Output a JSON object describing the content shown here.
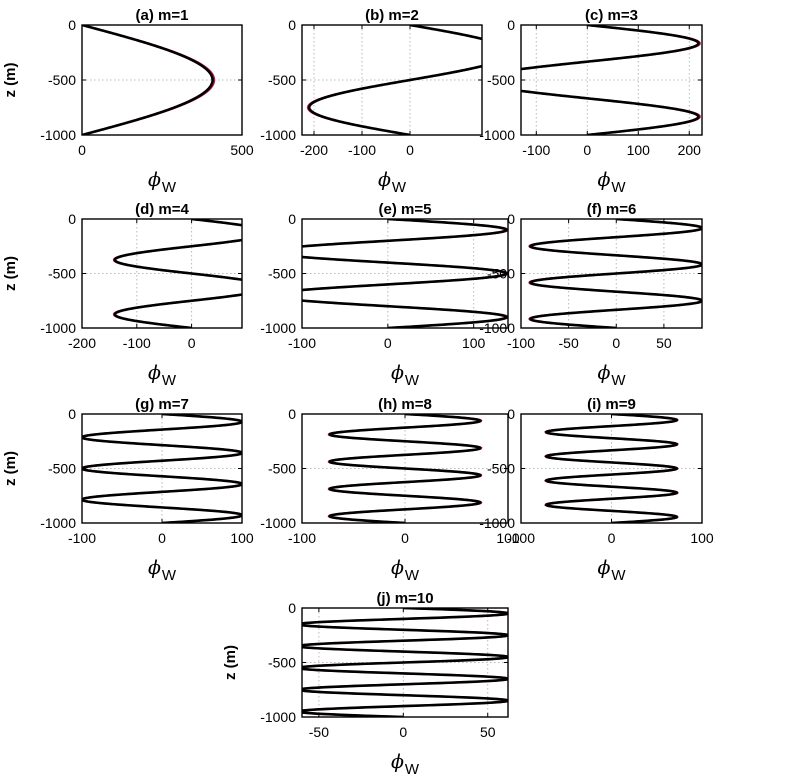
{
  "chart_data": [
    {
      "type": "line",
      "title": "(a) m=1",
      "xlabel": "ϕ",
      "xlabel_sub": "W",
      "ylabel": "z (m)",
      "xlim": [
        0,
        500
      ],
      "ylim": [
        -1000,
        0
      ],
      "xticks": [
        0,
        500
      ],
      "yticks": [
        0,
        -500,
        -1000
      ],
      "mode": 1,
      "amplitude": 408,
      "depth_range": [
        0,
        -1000
      ],
      "grid": true,
      "series": [
        {
          "color": "#000000"
        },
        {
          "color": "#c0185a"
        }
      ]
    },
    {
      "type": "line",
      "title": "(b) m=2",
      "xlabel": "ϕ",
      "xlabel_sub": "W",
      "ylabel": "",
      "xlim": [
        -225,
        150
      ],
      "ylim": [
        -1000,
        0
      ],
      "xticks": [
        -200,
        -100,
        0
      ],
      "yticks": [
        0,
        -500,
        -1000
      ],
      "mode": 2,
      "amplitude": 210,
      "depth_range": [
        0,
        -1000
      ],
      "grid": true,
      "series": [
        {
          "color": "#000000"
        },
        {
          "color": "#c0185a"
        }
      ]
    },
    {
      "type": "line",
      "title": "(c) m=3",
      "xlabel": "ϕ",
      "xlabel_sub": "W",
      "ylabel": "",
      "xlim": [
        -130,
        225
      ],
      "ylim": [
        -1000,
        0
      ],
      "xticks": [
        -100,
        0,
        100,
        200
      ],
      "yticks": [
        0,
        -500,
        -1000
      ],
      "mode": 3,
      "amplitude": 218,
      "depth_range": [
        0,
        -1000
      ],
      "grid": true,
      "series": [
        {
          "color": "#000000"
        },
        {
          "color": "#c0185a"
        }
      ]
    },
    {
      "type": "line",
      "title": "(d) m=4",
      "xlabel": "ϕ",
      "xlabel_sub": "W",
      "ylabel": "z (m)",
      "xlim": [
        -200,
        92
      ],
      "ylim": [
        -1000,
        0
      ],
      "xticks": [
        -200,
        -100,
        0
      ],
      "yticks": [
        0,
        -500,
        -1000
      ],
      "mode": 4,
      "amplitude": 140,
      "depth_range": [
        0,
        -1000
      ],
      "grid": true,
      "series": [
        {
          "color": "#000000"
        },
        {
          "color": "#c0185a"
        }
      ]
    },
    {
      "type": "line",
      "title": "(e) m=5",
      "xlabel": "ϕ",
      "xlabel_sub": "W",
      "ylabel": "",
      "xlim": [
        -100,
        140
      ],
      "ylim": [
        -1000,
        0
      ],
      "xticks": [
        -100,
        0,
        100
      ],
      "yticks": [
        0,
        -500,
        -1000
      ],
      "mode": 5,
      "amplitude": 138,
      "depth_range": [
        0,
        -1000
      ],
      "grid": true,
      "series": [
        {
          "color": "#000000"
        },
        {
          "color": "#c0185a"
        }
      ]
    },
    {
      "type": "line",
      "title": "(f) m=6",
      "xlabel": "ϕ",
      "xlabel_sub": "W",
      "ylabel": "",
      "xlim": [
        -100,
        90
      ],
      "ylim": [
        -1000,
        0
      ],
      "xticks": [
        -100,
        -50,
        0,
        50
      ],
      "yticks": [
        0,
        -500,
        -1000
      ],
      "mode": 6,
      "amplitude": 90,
      "depth_range": [
        0,
        -1000
      ],
      "grid": true,
      "series": [
        {
          "color": "#000000"
        },
        {
          "color": "#c0185a"
        }
      ]
    },
    {
      "type": "line",
      "title": "(g) m=7",
      "xlabel": "ϕ",
      "xlabel_sub": "W",
      "ylabel": "z (m)",
      "xlim": [
        -100,
        100
      ],
      "ylim": [
        -1000,
        0
      ],
      "xticks": [
        -100,
        0,
        100
      ],
      "yticks": [
        0,
        -500,
        -1000
      ],
      "mode": 7,
      "amplitude": 100,
      "depth_range": [
        0,
        -1000
      ],
      "grid": true,
      "series": [
        {
          "color": "#000000"
        },
        {
          "color": "#c0185a"
        }
      ]
    },
    {
      "type": "line",
      "title": "(h) m=8",
      "xlabel": "ϕ",
      "xlabel_sub": "W",
      "ylabel": "",
      "xlim": [
        -100,
        100
      ],
      "ylim": [
        -1000,
        0
      ],
      "xticks": [
        -100,
        0,
        100
      ],
      "yticks": [
        0,
        -500,
        -1000
      ],
      "mode": 8,
      "amplitude": 73,
      "depth_range": [
        0,
        -1000
      ],
      "grid": true,
      "series": [
        {
          "color": "#000000"
        },
        {
          "color": "#c0185a"
        }
      ]
    },
    {
      "type": "line",
      "title": "(i) m=9",
      "xlabel": "ϕ",
      "xlabel_sub": "W",
      "ylabel": "",
      "xlim": [
        -100,
        100
      ],
      "ylim": [
        -1000,
        0
      ],
      "xticks": [
        -100,
        0,
        100
      ],
      "yticks": [
        0,
        -500,
        -1000
      ],
      "mode": 9,
      "amplitude": 72,
      "depth_range": [
        0,
        -1000
      ],
      "grid": true,
      "series": [
        {
          "color": "#000000"
        },
        {
          "color": "#c0185a"
        }
      ]
    },
    {
      "type": "line",
      "title": "(j) m=10",
      "xlabel": "ϕ",
      "xlabel_sub": "W",
      "ylabel": "z (m)",
      "xlim": [
        -60,
        62
      ],
      "ylim": [
        -1000,
        0
      ],
      "xticks": [
        -50,
        0,
        50
      ],
      "yticks": [
        0,
        -500,
        -1000
      ],
      "mode": 10,
      "amplitude": 62,
      "depth_range": [
        0,
        -1000
      ],
      "grid": true,
      "series": [
        {
          "color": "#000000"
        },
        {
          "color": "#c0185a"
        }
      ]
    }
  ]
}
